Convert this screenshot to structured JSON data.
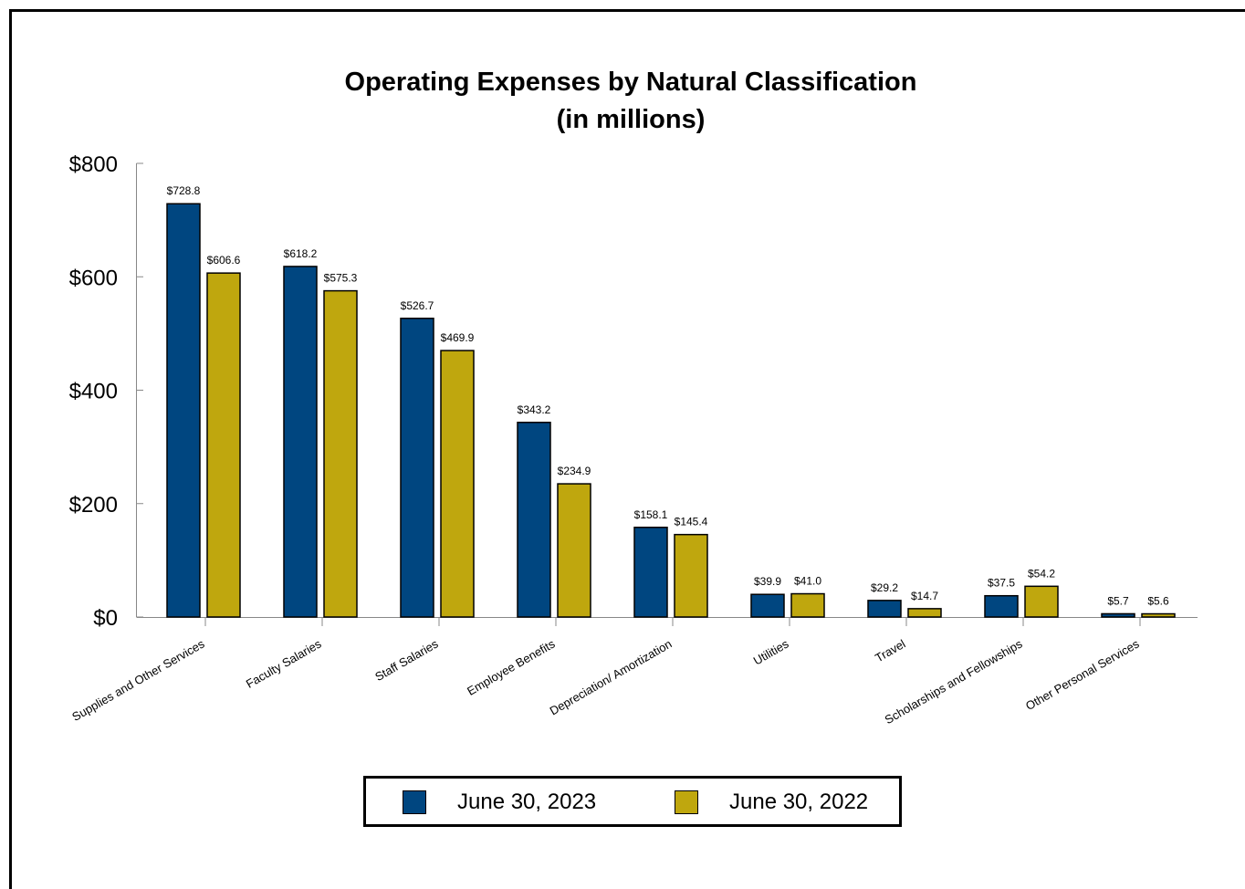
{
  "chart_data": {
    "type": "bar",
    "title": "Operating Expenses by Natural Classification",
    "subtitle": "(in millions)",
    "categories": [
      "Supplies and Other Services",
      "Faculty Salaries",
      "Staff Salaries",
      "Employee Benefits",
      "Depreciation/ Amortization",
      "Utilities",
      "Travel",
      "Scholarships and Fellowships",
      "Other Personal Services"
    ],
    "series": [
      {
        "name": "June 30, 2023",
        "color": "#004680",
        "values": [
          728.8,
          618.2,
          526.7,
          343.2,
          158.1,
          39.9,
          29.2,
          37.5,
          5.7
        ],
        "labels": [
          "$728.8",
          "$618.2",
          "$526.7",
          "$343.2",
          "$158.1",
          "$39.9",
          "$29.2",
          "$37.5",
          "$5.7"
        ]
      },
      {
        "name": "June 30, 2022",
        "color": "#BFA70E",
        "values": [
          606.6,
          575.3,
          469.9,
          234.9,
          145.4,
          41.0,
          14.7,
          54.2,
          5.6
        ],
        "labels": [
          "$606.6",
          "$575.3",
          "$469.9",
          "$234.9",
          "$145.4",
          "$41.0",
          "$14.7",
          "$54.2",
          "$5.6"
        ]
      }
    ],
    "ylim": [
      0,
      800
    ],
    "y_ticks": [
      {
        "value": 0,
        "label": "$0"
      },
      {
        "value": 200,
        "label": "$200"
      },
      {
        "value": 400,
        "label": "$400"
      },
      {
        "value": 600,
        "label": "$600"
      },
      {
        "value": 800,
        "label": "$800"
      }
    ],
    "xlabel": "",
    "ylabel": "",
    "grid": false,
    "legend_position": "bottom"
  }
}
